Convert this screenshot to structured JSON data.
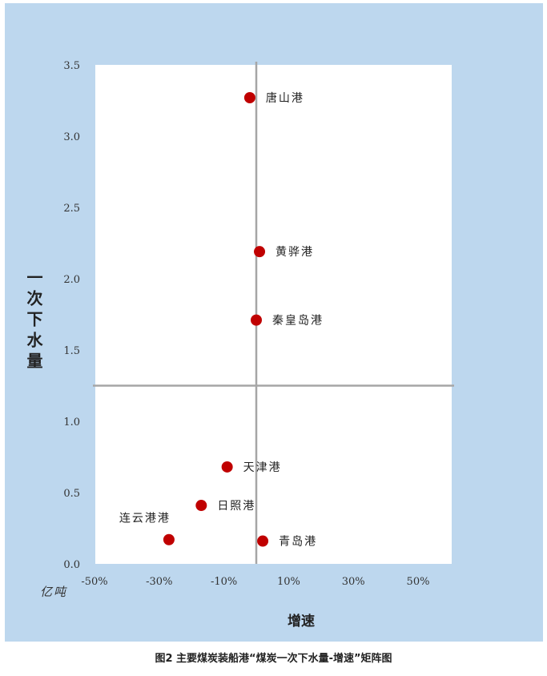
{
  "chart_data": {
    "type": "scatter",
    "title": "",
    "xlabel": "增速",
    "ylabel": "一次下水量",
    "y_unit": "亿吨",
    "xlim": [
      -50,
      50
    ],
    "ylim": [
      0,
      3.5
    ],
    "x_ticks": [
      "-50%",
      "-30%",
      "-10%",
      "10%",
      "30%",
      "50%"
    ],
    "x_tick_values": [
      -50,
      -30,
      -10,
      10,
      30,
      50
    ],
    "y_ticks": [
      "0.0",
      "0.5",
      "1.0",
      "1.5",
      "2.0",
      "2.5",
      "3.0",
      "3.5"
    ],
    "y_tick_values": [
      0,
      0.5,
      1.0,
      1.5,
      2.0,
      2.5,
      3.0,
      3.5
    ],
    "reference_lines": {
      "x": 0,
      "y": 1.25
    },
    "point_color": "#c00000",
    "points": [
      {
        "name": "唐山港",
        "x": -2,
        "y": 3.27,
        "label_side": "right"
      },
      {
        "name": "黄骅港",
        "x": 1,
        "y": 2.19,
        "label_side": "right"
      },
      {
        "name": "秦皇岛港",
        "x": 0,
        "y": 1.71,
        "label_side": "right"
      },
      {
        "name": "天津港",
        "x": -9,
        "y": 0.68,
        "label_side": "right"
      },
      {
        "name": "日照港",
        "x": -17,
        "y": 0.41,
        "label_side": "right"
      },
      {
        "name": "连云港港",
        "x": -27,
        "y": 0.17,
        "label_side": "above-left"
      },
      {
        "name": "青岛港",
        "x": 2,
        "y": 0.16,
        "label_side": "right"
      }
    ]
  },
  "caption": "图2 主要煤炭装船港“煤炭一次下水量-增速”矩阵图"
}
